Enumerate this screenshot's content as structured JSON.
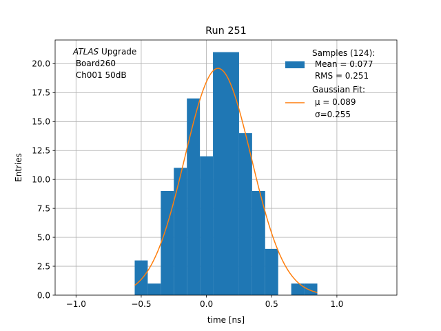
{
  "chart_data": {
    "type": "bar",
    "title": "Run 251",
    "xlabel": "time [ns]",
    "ylabel": "Entries",
    "xlim": [
      -1.16,
      1.46
    ],
    "ylim": [
      0,
      22.05
    ],
    "grid": true,
    "xticks": [
      -1.0,
      -0.5,
      0.0,
      0.5,
      1.0
    ],
    "xtick_labels": [
      "−1.0",
      "−0.5",
      "0.0",
      "0.5",
      "1.0"
    ],
    "yticks": [
      0.0,
      2.5,
      5.0,
      7.5,
      10.0,
      12.5,
      15.0,
      17.5,
      20.0
    ],
    "ytick_labels": [
      "0.0",
      "2.5",
      "5.0",
      "7.5",
      "10.0",
      "12.5",
      "15.0",
      "17.5",
      "20.0"
    ],
    "annotation": {
      "italic": "ATLAS",
      "rest": " Upgrade",
      "line2": " Board260",
      "line3": " Ch001 50dB"
    },
    "histogram": {
      "name": "Samples (124):",
      "color": "#1f77b4",
      "bins": [
        {
          "x0": -0.55,
          "x1": -0.45,
          "count": 3
        },
        {
          "x0": -0.45,
          "x1": -0.35,
          "count": 1
        },
        {
          "x0": -0.35,
          "x1": -0.25,
          "count": 9
        },
        {
          "x0": -0.25,
          "x1": -0.15,
          "count": 11
        },
        {
          "x0": -0.15,
          "x1": -0.05,
          "count": 17
        },
        {
          "x0": -0.05,
          "x1": 0.05,
          "count": 12
        },
        {
          "x0": 0.05,
          "x1": 0.15,
          "count": 21
        },
        {
          "x0": 0.15,
          "x1": 0.25,
          "count": 21
        },
        {
          "x0": 0.25,
          "x1": 0.35,
          "count": 14
        },
        {
          "x0": 0.35,
          "x1": 0.45,
          "count": 9
        },
        {
          "x0": 0.45,
          "x1": 0.55,
          "count": 4
        },
        {
          "x0": 0.65,
          "x1": 0.75,
          "count": 1
        },
        {
          "x0": 0.75,
          "x1": 0.85,
          "count": 1
        }
      ]
    },
    "fit": {
      "name": "Gaussian Fit:",
      "color": "#ff7f0e",
      "mu": 0.089,
      "sigma": 0.255,
      "amplitude": 19.6,
      "x_range": [
        -0.55,
        0.85
      ]
    },
    "legend": {
      "placement": "top-right",
      "hist_lines": [
        "Samples (124):",
        " Mean = 0.077",
        " RMS = 0.251"
      ],
      "fit_lines": [
        "Gaussian Fit:",
        " μ = 0.089",
        "σ=0.255"
      ]
    }
  }
}
